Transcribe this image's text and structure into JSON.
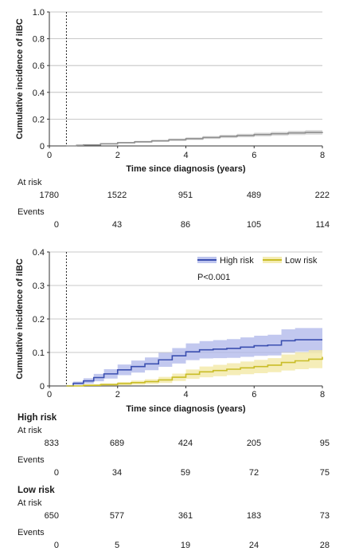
{
  "chart_data": [
    {
      "type": "line",
      "ylabel": "Cumulative incidence of iIBC",
      "xlabel": "Time since diagnosis (years)",
      "xlim": [
        0,
        8
      ],
      "ylim": [
        0,
        1.0
      ],
      "xticks": [
        "0",
        "2",
        "4",
        "6",
        "8"
      ],
      "yticks": [
        "0",
        "0.2",
        "0.4",
        "0.6",
        "0.8",
        "1.0"
      ],
      "reference_line_x": 0.5,
      "grid": "horizontal",
      "colors": {
        "line": "#8f8f8f",
        "band": "#cfcfcf"
      },
      "series": [
        {
          "x": [
            0.5,
            0.8,
            1.0,
            1.5,
            2.0,
            2.5,
            3.0,
            3.5,
            4.0,
            4.5,
            5.0,
            5.5,
            6.0,
            6.5,
            7.0,
            7.5,
            8.0
          ],
          "values": [
            0.0,
            0.005,
            0.008,
            0.016,
            0.024,
            0.031,
            0.038,
            0.046,
            0.054,
            0.063,
            0.071,
            0.078,
            0.085,
            0.091,
            0.097,
            0.101,
            0.104
          ],
          "ci_lower": [
            0.0,
            0.003,
            0.005,
            0.011,
            0.018,
            0.024,
            0.03,
            0.037,
            0.044,
            0.052,
            0.059,
            0.065,
            0.071,
            0.076,
            0.081,
            0.084,
            0.086
          ],
          "ci_upper": [
            0.0,
            0.008,
            0.012,
            0.021,
            0.03,
            0.038,
            0.046,
            0.055,
            0.064,
            0.074,
            0.083,
            0.091,
            0.099,
            0.106,
            0.113,
            0.118,
            0.122
          ]
        }
      ],
      "risk_table": {
        "at_risk_label": "At risk",
        "events_label": "Events",
        "at_risk": [
          "1780",
          "1522",
          "951",
          "489",
          "222"
        ],
        "events": [
          "0",
          "43",
          "86",
          "105",
          "114"
        ]
      }
    },
    {
      "type": "line",
      "ylabel": "Cumulative incidence of iIBC",
      "xlabel": "Time since diagnosis (years)",
      "xlim": [
        0,
        8
      ],
      "ylim": [
        0,
        0.4
      ],
      "xticks": [
        "0",
        "2",
        "4",
        "6",
        "8"
      ],
      "yticks": [
        "0",
        "0.1",
        "0.2",
        "0.3",
        "0.4"
      ],
      "reference_line_x": 0.5,
      "grid": "horizontal",
      "annotation": "P<0.001",
      "legend_position": "top-right",
      "series": [
        {
          "name": "High risk",
          "color": "#3b4fb0",
          "band_color": "#aeb6ea",
          "x": [
            0.5,
            0.7,
            1.0,
            1.3,
            1.6,
            2.0,
            2.4,
            2.8,
            3.2,
            3.6,
            4.0,
            4.4,
            4.8,
            5.2,
            5.6,
            6.0,
            6.4,
            6.8,
            7.2,
            7.6,
            8.0
          ],
          "values": [
            0.0,
            0.008,
            0.015,
            0.025,
            0.036,
            0.048,
            0.058,
            0.066,
            0.078,
            0.09,
            0.102,
            0.108,
            0.11,
            0.112,
            0.116,
            0.12,
            0.122,
            0.135,
            0.138,
            0.138,
            0.138
          ],
          "ci_lower": [
            0.0,
            0.003,
            0.007,
            0.014,
            0.022,
            0.032,
            0.04,
            0.047,
            0.057,
            0.067,
            0.077,
            0.082,
            0.083,
            0.084,
            0.087,
            0.09,
            0.091,
            0.101,
            0.103,
            0.103,
            0.103
          ],
          "ci_upper": [
            0.0,
            0.013,
            0.023,
            0.036,
            0.05,
            0.064,
            0.076,
            0.085,
            0.099,
            0.113,
            0.127,
            0.134,
            0.137,
            0.14,
            0.145,
            0.15,
            0.153,
            0.169,
            0.173,
            0.173,
            0.173
          ]
        },
        {
          "name": "Low risk",
          "color": "#c9bd27",
          "band_color": "#f1e7a0",
          "x": [
            0.5,
            1.0,
            1.5,
            2.0,
            2.4,
            2.8,
            3.2,
            3.6,
            4.0,
            4.4,
            4.8,
            5.2,
            5.6,
            6.0,
            6.4,
            6.8,
            7.2,
            7.6,
            8.0
          ],
          "values": [
            0.0,
            0.002,
            0.004,
            0.007,
            0.01,
            0.013,
            0.018,
            0.026,
            0.035,
            0.042,
            0.046,
            0.05,
            0.054,
            0.058,
            0.062,
            0.07,
            0.075,
            0.08,
            0.087
          ],
          "ci_lower": [
            0.0,
            0.0,
            0.001,
            0.002,
            0.004,
            0.006,
            0.009,
            0.015,
            0.021,
            0.026,
            0.029,
            0.032,
            0.035,
            0.038,
            0.041,
            0.046,
            0.05,
            0.053,
            0.058
          ],
          "ci_upper": [
            0.0,
            0.005,
            0.008,
            0.012,
            0.016,
            0.02,
            0.027,
            0.037,
            0.049,
            0.058,
            0.063,
            0.068,
            0.073,
            0.078,
            0.083,
            0.094,
            0.1,
            0.107,
            0.116
          ]
        }
      ],
      "risk_table": {
        "at_risk_label": "At risk",
        "events_label": "Events",
        "groups": [
          {
            "name": "High risk",
            "at_risk": [
              "833",
              "689",
              "424",
              "205",
              "95"
            ],
            "events": [
              "0",
              "34",
              "59",
              "72",
              "75"
            ]
          },
          {
            "name": "Low risk",
            "at_risk": [
              "650",
              "577",
              "361",
              "183",
              "73"
            ],
            "events": [
              "0",
              "5",
              "19",
              "24",
              "28"
            ]
          }
        ]
      }
    }
  ]
}
